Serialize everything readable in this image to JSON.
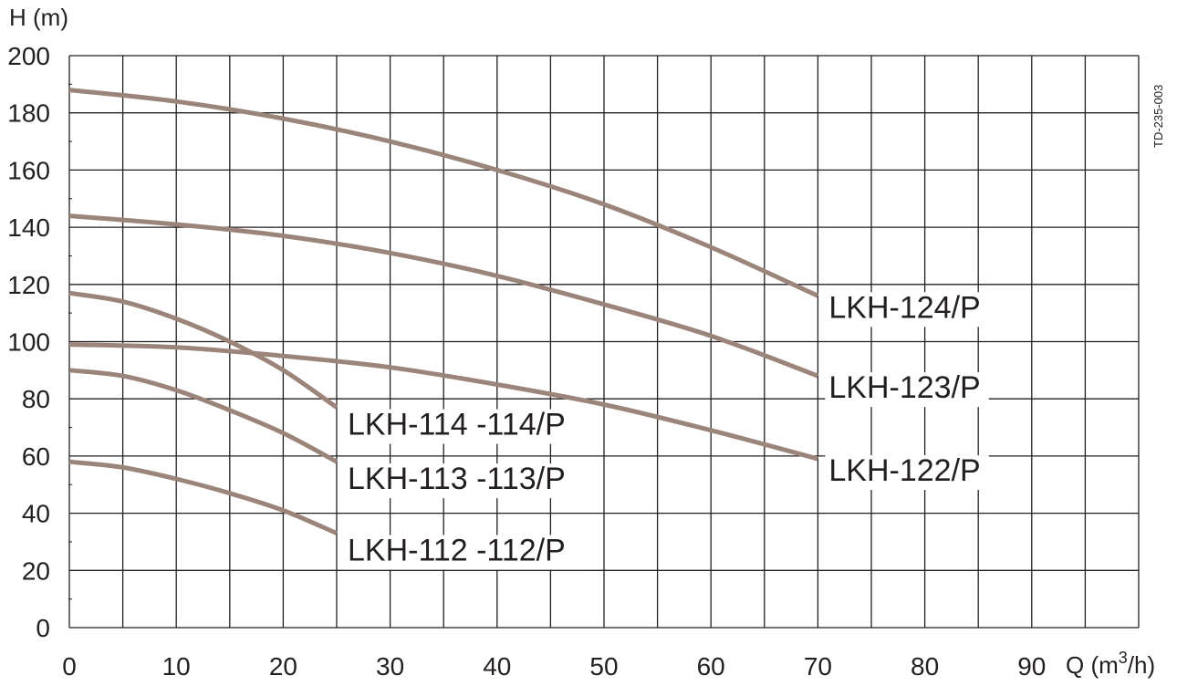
{
  "chart_data": {
    "type": "line",
    "xlabel": "Q (m³/h)",
    "ylabel": "H (m)",
    "xlim": [
      0,
      100
    ],
    "ylim": [
      0,
      200
    ],
    "x_ticks": [
      "0",
      "10",
      "20",
      "30",
      "40",
      "50",
      "60",
      "70",
      "80",
      "90"
    ],
    "y_ticks": [
      "0",
      "20",
      "40",
      "60",
      "80",
      "100",
      "120",
      "140",
      "160",
      "180",
      "200"
    ],
    "grid": true,
    "doc_code": "TD-235-003",
    "line_color": "#9b857a",
    "series": [
      {
        "name": "LKH-124/P",
        "x": [
          0,
          10,
          20,
          30,
          40,
          50,
          60,
          70
        ],
        "y": [
          188,
          184,
          178,
          170,
          160,
          148,
          133,
          116
        ]
      },
      {
        "name": "LKH-123/P",
        "x": [
          0,
          10,
          20,
          30,
          40,
          50,
          60,
          70
        ],
        "y": [
          144,
          141,
          137,
          131,
          123,
          113,
          102,
          88
        ]
      },
      {
        "name": "LKH-122/P",
        "x": [
          0,
          10,
          20,
          30,
          40,
          50,
          60,
          70
        ],
        "y": [
          99,
          98,
          95,
          91,
          85,
          78,
          69,
          59
        ]
      },
      {
        "name": "LKH-114 -114/P",
        "x": [
          0,
          5,
          10,
          15,
          20,
          25
        ],
        "y": [
          117,
          114,
          108,
          100,
          90,
          77
        ]
      },
      {
        "name": "LKH-113 -113/P",
        "x": [
          0,
          5,
          10,
          15,
          20,
          25
        ],
        "y": [
          90,
          88,
          83,
          76,
          68,
          58
        ]
      },
      {
        "name": "LKH-112 -112/P",
        "x": [
          0,
          5,
          10,
          15,
          20,
          25
        ],
        "y": [
          58,
          56,
          52,
          47,
          41,
          33
        ]
      }
    ]
  }
}
